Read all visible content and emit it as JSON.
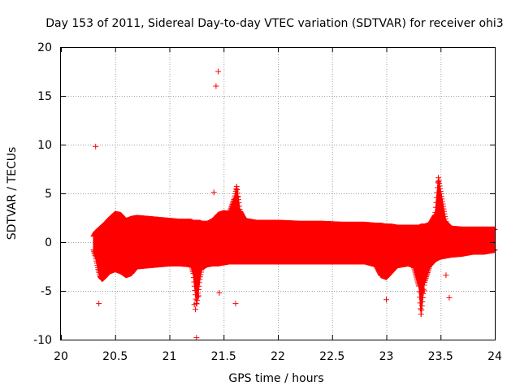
{
  "chart_data": {
    "type": "scatter",
    "title": "Day 153 of 2011, Sidereal Day-to-day VTEC variation (SDTVAR) for receiver ohi3",
    "xlabel": "GPS time / hours",
    "ylabel": "SDTVAR / TECUs",
    "xlim": [
      20,
      24
    ],
    "ylim": [
      -10,
      20
    ],
    "xticks": [
      20,
      20.5,
      21,
      21.5,
      22,
      22.5,
      23,
      23.5,
      24
    ],
    "xtick_labels": [
      "20",
      "20.5",
      "21",
      "21.5",
      "22",
      "22.5",
      "23",
      "23.5",
      "24"
    ],
    "yticks": [
      -10,
      -5,
      0,
      5,
      10,
      15,
      20
    ],
    "ytick_labels": [
      "-10",
      "-5",
      "0",
      "5",
      "10",
      "15",
      "20"
    ],
    "grid": true,
    "marker": "+",
    "series_color": "#ff0000",
    "band": {
      "name": "dense SDTVAR band (sampled envelope)",
      "x": [
        20.3,
        20.32,
        20.34,
        20.36,
        20.38,
        20.4,
        20.45,
        20.5,
        20.55,
        20.6,
        20.65,
        20.7,
        20.8,
        20.9,
        21.0,
        21.1,
        21.2,
        21.22,
        21.25,
        21.28,
        21.3,
        21.35,
        21.4,
        21.45,
        21.5,
        21.55,
        21.6,
        21.62,
        21.65,
        21.7,
        21.8,
        22.0,
        22.2,
        22.4,
        22.6,
        22.8,
        22.9,
        22.95,
        23.0,
        23.05,
        23.1,
        23.2,
        23.25,
        23.3,
        23.32,
        23.35,
        23.4,
        23.45,
        23.48,
        23.5,
        23.55,
        23.6,
        23.7,
        23.8,
        23.9,
        24.0
      ],
      "upper": [
        0.6,
        1.0,
        1.2,
        1.4,
        1.6,
        1.8,
        2.4,
        2.9,
        2.8,
        2.2,
        2.4,
        2.5,
        2.4,
        2.3,
        2.2,
        2.1,
        2.1,
        2.0,
        2.0,
        2.0,
        1.9,
        1.9,
        2.2,
        2.8,
        3.0,
        2.9,
        4.5,
        5.7,
        3.2,
        2.2,
        2.0,
        2.0,
        1.9,
        1.9,
        1.8,
        1.8,
        1.7,
        1.7,
        1.6,
        1.6,
        1.5,
        1.5,
        1.5,
        1.5,
        1.6,
        1.6,
        1.8,
        2.8,
        6.6,
        5.2,
        2.0,
        1.4,
        1.3,
        1.3,
        1.3,
        1.3
      ],
      "lower": [
        -0.8,
        -1.5,
        -2.6,
        -3.5,
        -3.8,
        -3.6,
        -3.0,
        -2.8,
        -3.0,
        -3.4,
        -3.2,
        -2.5,
        -2.4,
        -2.3,
        -2.2,
        -2.2,
        -2.3,
        -3.2,
        -6.5,
        -3.8,
        -2.6,
        -2.3,
        -2.2,
        -2.2,
        -2.1,
        -2.0,
        -2.0,
        -2.0,
        -2.0,
        -2.0,
        -2.0,
        -2.0,
        -2.0,
        -2.0,
        -2.0,
        -2.0,
        -2.3,
        -3.4,
        -3.6,
        -3.0,
        -2.4,
        -2.2,
        -2.4,
        -4.5,
        -7.4,
        -4.2,
        -2.4,
        -1.8,
        -1.6,
        -1.5,
        -1.4,
        -1.3,
        -1.2,
        -1.0,
        -1.0,
        -0.8
      ]
    },
    "outliers": {
      "name": "isolated SDTVAR points",
      "x": [
        20.32,
        20.35,
        21.25,
        21.24,
        21.27,
        21.23,
        21.41,
        21.43,
        21.45,
        21.46,
        21.61,
        21.62,
        21.63,
        23.0,
        23.35,
        23.48,
        23.55,
        23.58
      ],
      "y": [
        9.8,
        -6.3,
        -9.8,
        -6.9,
        -5.5,
        -6.4,
        5.1,
        16.0,
        17.5,
        -5.2,
        -6.3,
        5.4,
        4.6,
        -5.9,
        -5.0,
        6.2,
        -3.4,
        -5.7
      ]
    }
  }
}
